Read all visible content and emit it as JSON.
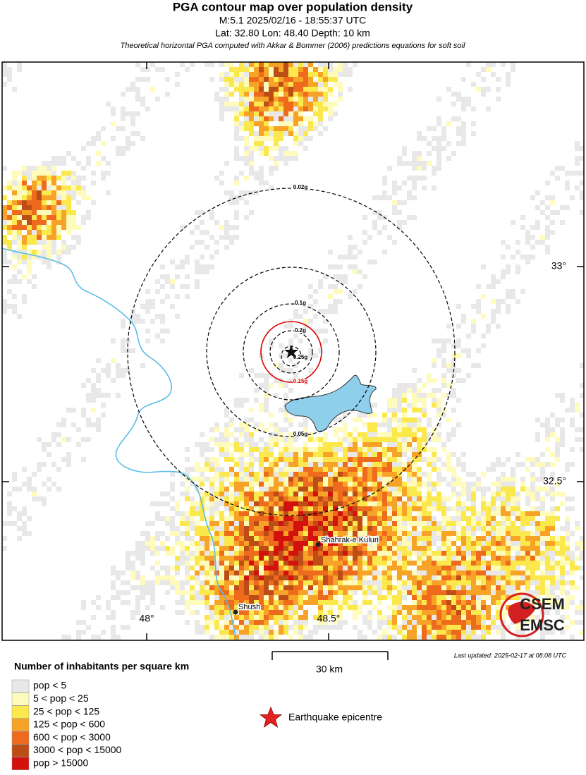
{
  "header": {
    "title": "PGA contour map over population density",
    "event": "M:5.1 2025/02/16 - 18:55:37 UTC",
    "location": "Lat: 32.80 Lon: 48.40 Depth: 10 km",
    "subtitle": "Theoretical horizontal PGA computed with Akkar & Bommer (2006) predictions equations for soft soil"
  },
  "contours": [
    "0.02g",
    "0.05g",
    "0.1g",
    "0.15g",
    "0.2g",
    "0.25g"
  ],
  "places": [
    "Shahrak-e Kuluri",
    "Shush"
  ],
  "lat_labels": [
    "33°",
    "32.5°"
  ],
  "lon_labels": [
    "48°",
    "48.5°"
  ],
  "scale_label": "30 km",
  "last_updated": "Last updated: 2025-02-17 at 08:08 UTC",
  "logo": [
    "CSEM",
    "EMSC"
  ],
  "legend": {
    "title": "Number of inhabitants per square km",
    "items": [
      {
        "label": "pop < 5",
        "color": "#e8e8e8"
      },
      {
        "label": "5 < pop < 25",
        "color": "#fffbbd"
      },
      {
        "label": "25 < pop < 125",
        "color": "#fbe84c"
      },
      {
        "label": "125 < pop < 600",
        "color": "#f7a327"
      },
      {
        "label": "600 < pop < 3000",
        "color": "#ee6a1c"
      },
      {
        "label": "3000 < pop < 15000",
        "color": "#bd4d17"
      },
      {
        "label": "pop > 15000",
        "color": "#d3120e"
      }
    ],
    "epicentre": "Earthquake epicentre"
  }
}
